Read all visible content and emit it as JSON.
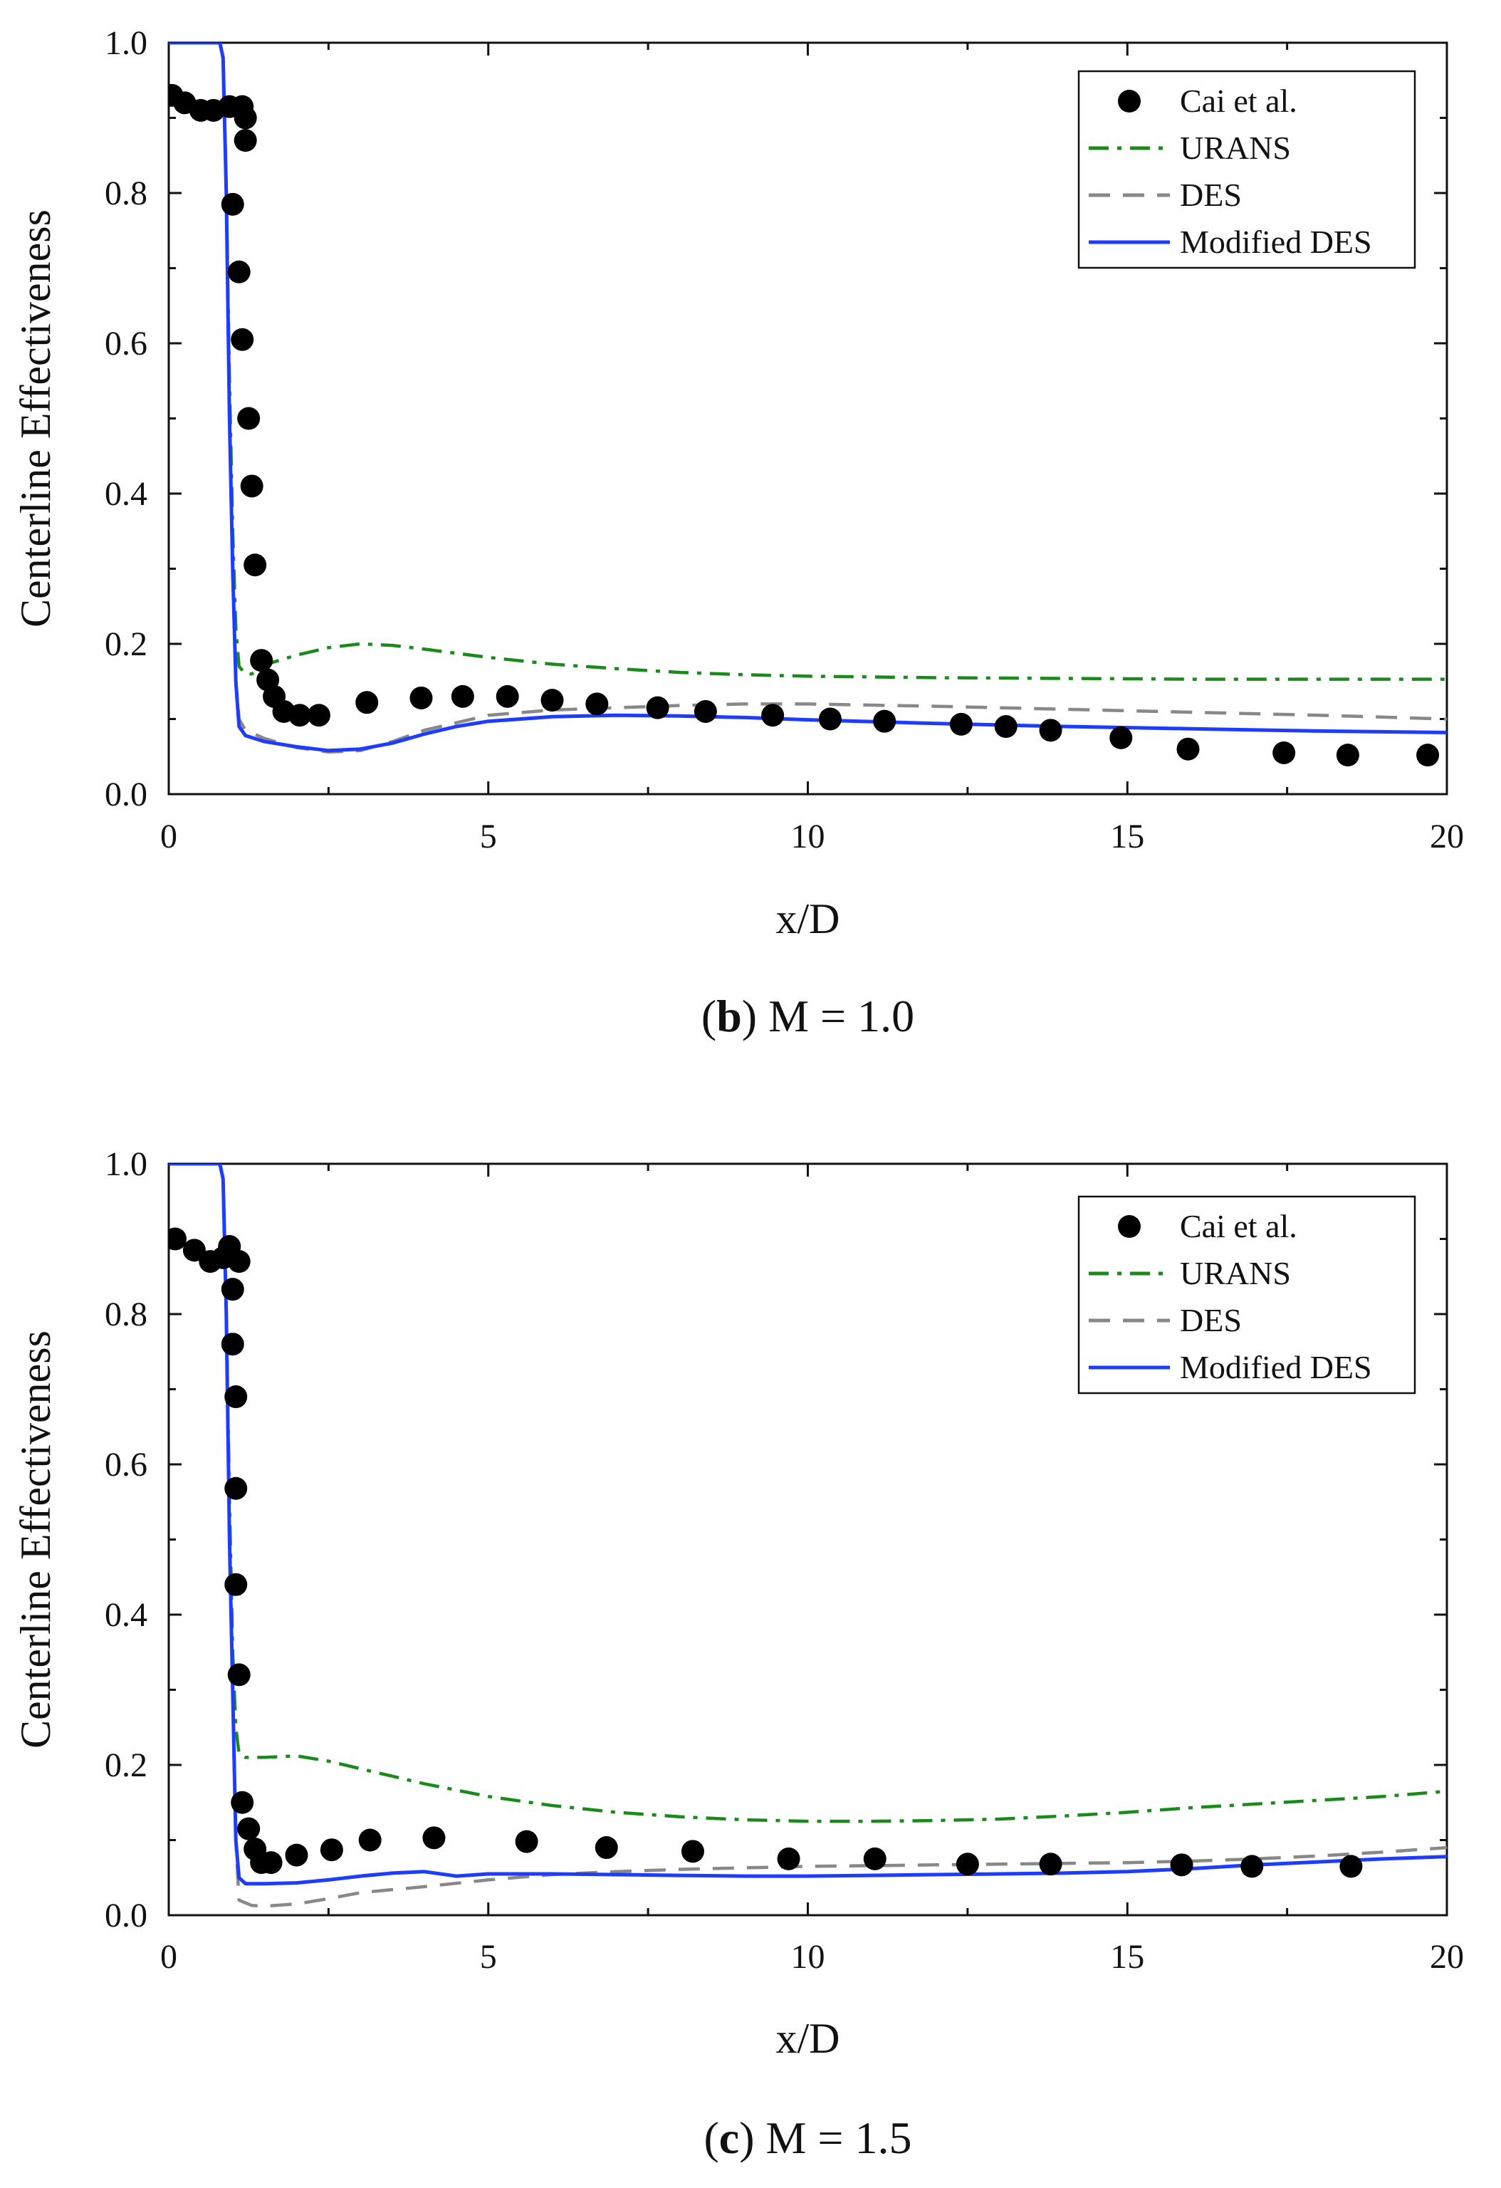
{
  "chart_data": [
    {
      "type": "line",
      "panel_letter": "b",
      "caption_rest": " M = 1.0",
      "xlabel": "x/D",
      "ylabel": "Centerline Effectiveness",
      "xlim": [
        0,
        20
      ],
      "ylim": [
        0.0,
        1.0
      ],
      "xticks": [
        "0",
        "5",
        "10",
        "15",
        "20"
      ],
      "yticks": [
        "0.0",
        "0.2",
        "0.4",
        "0.6",
        "0.8",
        "1.0"
      ],
      "legend_position": "top-right",
      "series": [
        {
          "name": "Cai et al.",
          "kind": "scatter",
          "color": "#000000",
          "x": [
            0.05,
            0.25,
            0.5,
            0.7,
            0.95,
            1.0,
            1.1,
            1.15,
            1.15,
            1.2,
            1.2,
            1.25,
            1.3,
            1.35,
            1.45,
            1.55,
            1.65,
            1.8,
            2.05,
            2.35,
            3.1,
            3.95,
            4.6,
            5.3,
            6.0,
            6.7,
            7.65,
            8.4,
            9.45,
            10.35,
            11.2,
            12.4,
            13.1,
            13.8,
            14.9,
            15.95,
            17.45,
            18.45,
            19.7
          ],
          "y": [
            0.93,
            0.92,
            0.91,
            0.91,
            0.915,
            0.785,
            0.695,
            0.605,
            0.915,
            0.9,
            0.87,
            0.5,
            0.41,
            0.305,
            0.178,
            0.152,
            0.13,
            0.11,
            0.105,
            0.105,
            0.122,
            0.128,
            0.13,
            0.13,
            0.125,
            0.12,
            0.115,
            0.11,
            0.105,
            0.1,
            0.097,
            0.093,
            0.09,
            0.085,
            0.075,
            0.06,
            0.055,
            0.052,
            0.052
          ]
        },
        {
          "name": "URANS",
          "kind": "line",
          "dash": "dashdot",
          "color": "#1a8a1a",
          "x": [
            0,
            0.8,
            0.85,
            0.9,
            0.95,
            1.0,
            1.05,
            1.1,
            1.2,
            1.3,
            1.5,
            2.0,
            2.5,
            3.0,
            3.5,
            4.0,
            5.0,
            6.0,
            7.0,
            8.0,
            9.0,
            10.0,
            12.0,
            14.0,
            16.0,
            18.0,
            20.0
          ],
          "y": [
            1.0,
            1.0,
            0.98,
            0.8,
            0.55,
            0.35,
            0.22,
            0.17,
            0.16,
            0.16,
            0.172,
            0.185,
            0.195,
            0.2,
            0.198,
            0.193,
            0.182,
            0.173,
            0.167,
            0.162,
            0.159,
            0.157,
            0.155,
            0.154,
            0.153,
            0.153,
            0.153
          ]
        },
        {
          "name": "DES",
          "kind": "line",
          "dash": "dashed",
          "color": "#888888",
          "x": [
            0,
            0.8,
            0.85,
            0.9,
            0.95,
            1.0,
            1.05,
            1.1,
            1.2,
            1.5,
            2.0,
            2.5,
            3.0,
            3.5,
            4.0,
            5.0,
            6.0,
            7.0,
            8.0,
            9.0,
            10.0,
            12.0,
            14.0,
            16.0,
            18.0,
            20.0
          ],
          "y": [
            1.0,
            1.0,
            0.98,
            0.8,
            0.5,
            0.3,
            0.15,
            0.1,
            0.085,
            0.074,
            0.062,
            0.056,
            0.058,
            0.07,
            0.085,
            0.105,
            0.112,
            0.115,
            0.118,
            0.12,
            0.12,
            0.117,
            0.113,
            0.109,
            0.105,
            0.1
          ]
        },
        {
          "name": "Modified DES",
          "kind": "line",
          "dash": "solid",
          "color": "#1e3cff",
          "x": [
            0,
            0.8,
            0.85,
            0.9,
            0.95,
            1.0,
            1.05,
            1.1,
            1.2,
            1.5,
            2.0,
            2.5,
            3.0,
            3.5,
            4.0,
            4.5,
            5.0,
            6.0,
            7.0,
            8.0,
            9.0,
            10.0,
            12.0,
            14.0,
            16.0,
            18.0,
            20.0
          ],
          "y": [
            1.0,
            1.0,
            0.98,
            0.8,
            0.5,
            0.3,
            0.15,
            0.09,
            0.078,
            0.07,
            0.063,
            0.058,
            0.06,
            0.068,
            0.08,
            0.09,
            0.097,
            0.103,
            0.105,
            0.104,
            0.102,
            0.099,
            0.094,
            0.09,
            0.087,
            0.084,
            0.082
          ]
        }
      ]
    },
    {
      "type": "line",
      "panel_letter": "c",
      "caption_rest": " M = 1.5",
      "xlabel": "x/D",
      "ylabel": "Centerline Effectiveness",
      "xlim": [
        0,
        20
      ],
      "ylim": [
        0.0,
        1.0
      ],
      "xticks": [
        "0",
        "5",
        "10",
        "15",
        "20"
      ],
      "yticks": [
        "0.0",
        "0.2",
        "0.4",
        "0.6",
        "0.8",
        "1.0"
      ],
      "legend_position": "top-right",
      "series": [
        {
          "name": "Cai et al.",
          "kind": "scatter",
          "color": "#000000",
          "x": [
            0.1,
            0.4,
            0.65,
            0.85,
            0.95,
            1.0,
            1.0,
            1.05,
            1.05,
            1.05,
            1.1,
            1.1,
            1.15,
            1.25,
            1.35,
            1.45,
            1.6,
            2.0,
            2.55,
            3.15,
            4.15,
            5.6,
            6.85,
            8.2,
            9.7,
            11.05,
            12.5,
            13.8,
            15.85,
            16.95,
            18.5
          ],
          "y": [
            0.9,
            0.885,
            0.87,
            0.875,
            0.89,
            0.76,
            0.833,
            0.69,
            0.568,
            0.44,
            0.87,
            0.32,
            0.15,
            0.115,
            0.088,
            0.07,
            0.07,
            0.08,
            0.087,
            0.1,
            0.103,
            0.098,
            0.09,
            0.085,
            0.075,
            0.075,
            0.068,
            0.068,
            0.067,
            0.065,
            0.065
          ]
        },
        {
          "name": "URANS",
          "kind": "line",
          "dash": "dashdot",
          "color": "#1a8a1a",
          "x": [
            0,
            0.8,
            0.85,
            0.9,
            0.95,
            1.0,
            1.05,
            1.1,
            1.2,
            1.5,
            2.0,
            2.5,
            3.0,
            4.0,
            5.0,
            6.0,
            7.0,
            8.0,
            9.0,
            10.0,
            11.0,
            12.0,
            13.0,
            14.0,
            15.0,
            16.0,
            17.0,
            18.0,
            19.0,
            20.0
          ],
          "y": [
            1.0,
            1.0,
            0.98,
            0.8,
            0.55,
            0.35,
            0.25,
            0.215,
            0.21,
            0.21,
            0.212,
            0.205,
            0.195,
            0.175,
            0.158,
            0.146,
            0.137,
            0.131,
            0.127,
            0.125,
            0.125,
            0.126,
            0.128,
            0.132,
            0.137,
            0.143,
            0.148,
            0.153,
            0.158,
            0.165
          ]
        },
        {
          "name": "DES",
          "kind": "line",
          "dash": "dashed",
          "color": "#888888",
          "x": [
            0,
            0.8,
            0.85,
            0.9,
            0.95,
            1.0,
            1.05,
            1.1,
            1.3,
            1.5,
            2.0,
            2.5,
            3.0,
            4.0,
            5.0,
            6.0,
            7.0,
            8.0,
            9.0,
            10.0,
            11.0,
            12.0,
            13.0,
            14.0,
            15.0,
            16.0,
            17.0,
            18.0,
            19.0,
            20.0
          ],
          "y": [
            1.0,
            1.0,
            0.98,
            0.8,
            0.5,
            0.3,
            0.1,
            0.02,
            0.013,
            0.012,
            0.015,
            0.022,
            0.03,
            0.038,
            0.047,
            0.054,
            0.058,
            0.061,
            0.063,
            0.065,
            0.066,
            0.067,
            0.068,
            0.069,
            0.07,
            0.072,
            0.075,
            0.079,
            0.084,
            0.09
          ]
        },
        {
          "name": "Modified DES",
          "kind": "line",
          "dash": "solid",
          "color": "#1e3cff",
          "x": [
            0,
            0.8,
            0.85,
            0.9,
            0.95,
            1.0,
            1.05,
            1.1,
            1.2,
            1.5,
            2.0,
            2.5,
            3.0,
            3.5,
            4.0,
            4.5,
            5.0,
            6.0,
            7.0,
            8.0,
            9.0,
            10.0,
            11.0,
            12.0,
            13.0,
            14.0,
            15.0,
            16.0,
            17.0,
            18.0,
            19.0,
            20.0
          ],
          "y": [
            1.0,
            1.0,
            0.98,
            0.8,
            0.5,
            0.3,
            0.1,
            0.05,
            0.042,
            0.042,
            0.043,
            0.047,
            0.052,
            0.056,
            0.058,
            0.052,
            0.055,
            0.055,
            0.054,
            0.053,
            0.052,
            0.052,
            0.053,
            0.054,
            0.055,
            0.056,
            0.058,
            0.062,
            0.067,
            0.071,
            0.075,
            0.078
          ]
        }
      ]
    }
  ]
}
